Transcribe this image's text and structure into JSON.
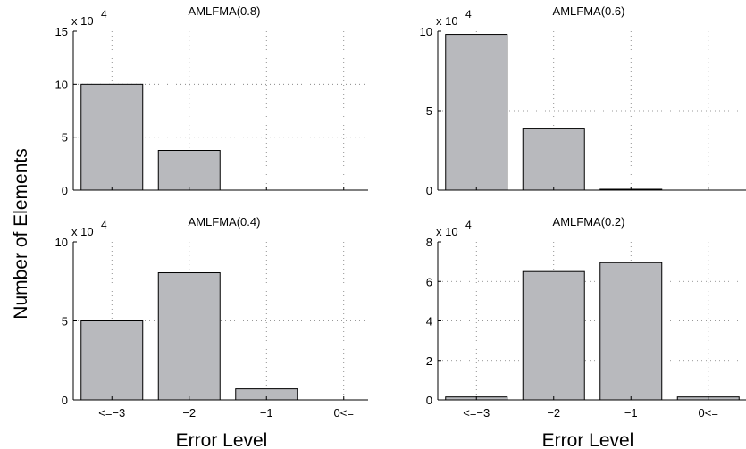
{
  "figure": {
    "ylabel": "Number of Elements",
    "xlabel": "Error Level"
  },
  "chart_data": [
    {
      "type": "bar",
      "title": "AMLFMA(0.8)",
      "categories": [
        "<=−3",
        "−2",
        "−1",
        "0<="
      ],
      "values": [
        100000,
        37500,
        0,
        0
      ],
      "ylim": [
        0,
        150000
      ],
      "yticks": [
        "0",
        "5",
        "10",
        "15"
      ],
      "y_multiplier": "x 10",
      "y_multiplier_exp": "4",
      "xlabel": "",
      "ylabel": "",
      "grid": true,
      "bar_color": "#b8b9bd"
    },
    {
      "type": "bar",
      "title": "AMLFMA(0.6)",
      "categories": [
        "<=−3",
        "−2",
        "−1",
        "0<="
      ],
      "values": [
        98000,
        39000,
        500,
        0
      ],
      "ylim": [
        0,
        100000
      ],
      "yticks": [
        "0",
        "5",
        "10"
      ],
      "y_multiplier": "x 10",
      "y_multiplier_exp": "4",
      "xlabel": "",
      "ylabel": "",
      "grid": true,
      "bar_color": "#b8b9bd"
    },
    {
      "type": "bar",
      "title": "AMLFMA(0.4)",
      "categories": [
        "<=−3",
        "−2",
        "−1",
        "0<="
      ],
      "values": [
        50000,
        80500,
        7000,
        0
      ],
      "ylim": [
        0,
        100000
      ],
      "yticks": [
        "0",
        "5",
        "10"
      ],
      "y_multiplier": "x 10",
      "y_multiplier_exp": "4",
      "xlabel": "",
      "ylabel": "",
      "grid": true,
      "bar_color": "#b8b9bd"
    },
    {
      "type": "bar",
      "title": "AMLFMA(0.2)",
      "categories": [
        "<=−3",
        "−2",
        "−1",
        "0<="
      ],
      "values": [
        1500,
        65000,
        69500,
        1500
      ],
      "ylim": [
        0,
        80000
      ],
      "yticks": [
        "0",
        "2",
        "4",
        "6",
        "8"
      ],
      "y_multiplier": "x 10",
      "y_multiplier_exp": "4",
      "xlabel": "",
      "ylabel": "",
      "grid": true,
      "bar_color": "#b8b9bd"
    }
  ]
}
